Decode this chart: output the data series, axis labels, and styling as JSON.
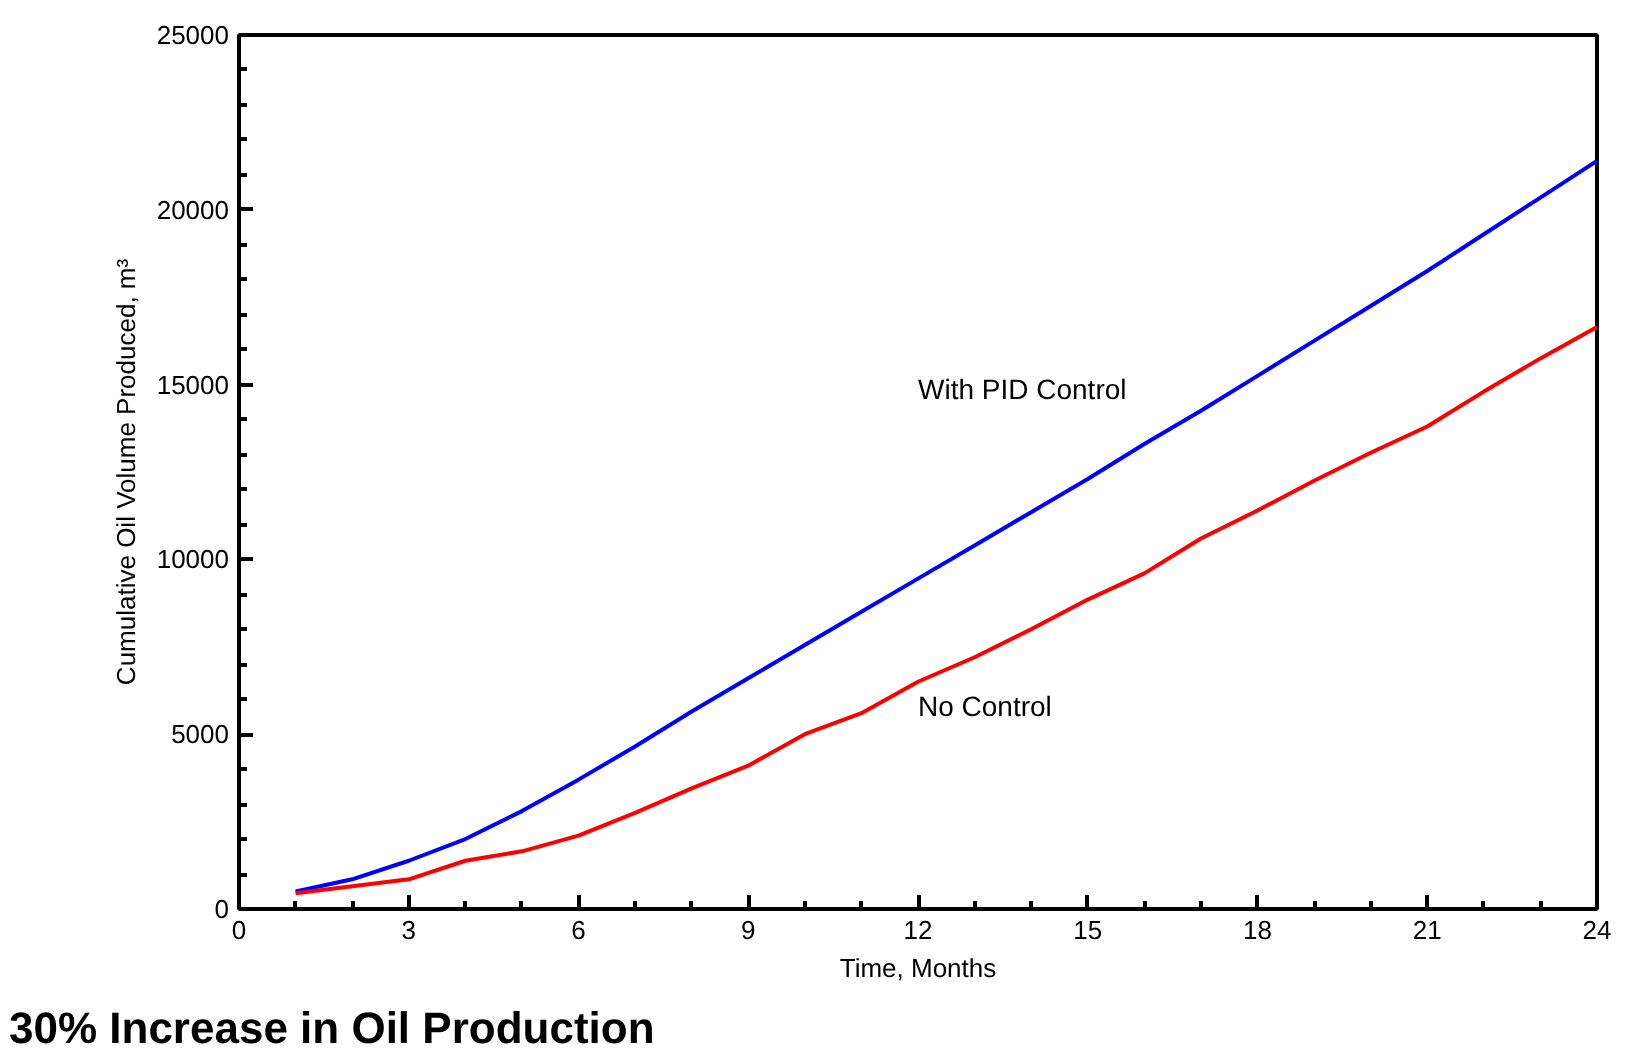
{
  "chart_data": {
    "type": "line",
    "xlabel": "Time, Months",
    "ylabel": "Cumulative Oil Volume Produced, m³",
    "x": [
      1,
      2,
      3,
      4,
      5,
      6,
      7,
      8,
      9,
      10,
      11,
      12,
      13,
      14,
      15,
      16,
      17,
      18,
      19,
      20,
      21,
      22,
      23,
      24
    ],
    "series": [
      {
        "name": "With PID Control",
        "color": "#0000ff",
        "values": [
          500,
          850,
          1380,
          2000,
          2800,
          3700,
          4650,
          5650,
          6600,
          7550,
          8500,
          9450,
          10400,
          11350,
          12300,
          13300,
          14250,
          15250,
          16250,
          17250,
          18250,
          19300,
          20350,
          21400
        ]
      },
      {
        "name": "No Control",
        "color": "#ff0000",
        "values": [
          450,
          650,
          850,
          1380,
          1650,
          2100,
          2750,
          3450,
          4100,
          5000,
          5600,
          6500,
          7200,
          8000,
          8850,
          9600,
          10600,
          11400,
          12250,
          13050,
          13800,
          14800,
          15750,
          16650
        ]
      }
    ],
    "xlim": [
      0,
      24
    ],
    "xticks": [
      0,
      3,
      6,
      9,
      12,
      15,
      18,
      21,
      24
    ],
    "ylim": [
      0,
      25000
    ],
    "yticks": [
      0,
      5000,
      10000,
      15000,
      20000,
      25000
    ],
    "grid": false,
    "marker": "none",
    "line_style": "solid",
    "annotations": [
      "30% Increase in Oil Production"
    ]
  }
}
